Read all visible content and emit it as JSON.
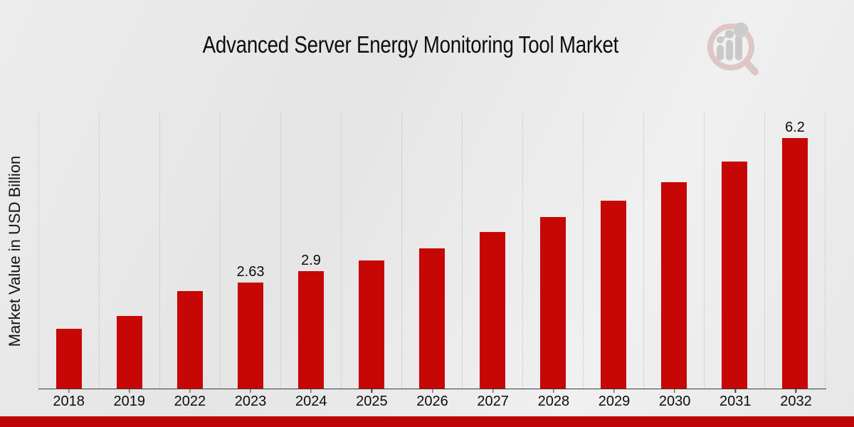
{
  "page": {
    "footer_color": "#bd0505",
    "accent_color": "#c70606",
    "background_color": "#e9e9e9"
  },
  "icons": {
    "watermark": "magnifier-bar-chart-logo"
  },
  "chart_data": {
    "type": "bar",
    "title": "Advanced Server Energy Monitoring Tool Market",
    "xlabel": "",
    "ylabel": "Market Value in USD Billion",
    "categories": [
      "2018",
      "2019",
      "2022",
      "2023",
      "2024",
      "2025",
      "2026",
      "2027",
      "2028",
      "2029",
      "2030",
      "2031",
      "2032"
    ],
    "values": [
      1.48,
      1.8,
      2.42,
      2.63,
      2.9,
      3.18,
      3.48,
      3.88,
      4.24,
      4.66,
      5.12,
      5.63,
      6.2
    ],
    "shown_labels": [
      "",
      "",
      "",
      "2.63",
      "2.9",
      "",
      "",
      "",
      "",
      "",
      "",
      "",
      "6.2"
    ],
    "ylim": [
      0,
      6.82
    ],
    "bar_color": "#c70606",
    "grid": "vertical-dotted",
    "gridline_color": "#bfbfbf",
    "axis_color": "#3c3c3c",
    "legend": "none"
  }
}
